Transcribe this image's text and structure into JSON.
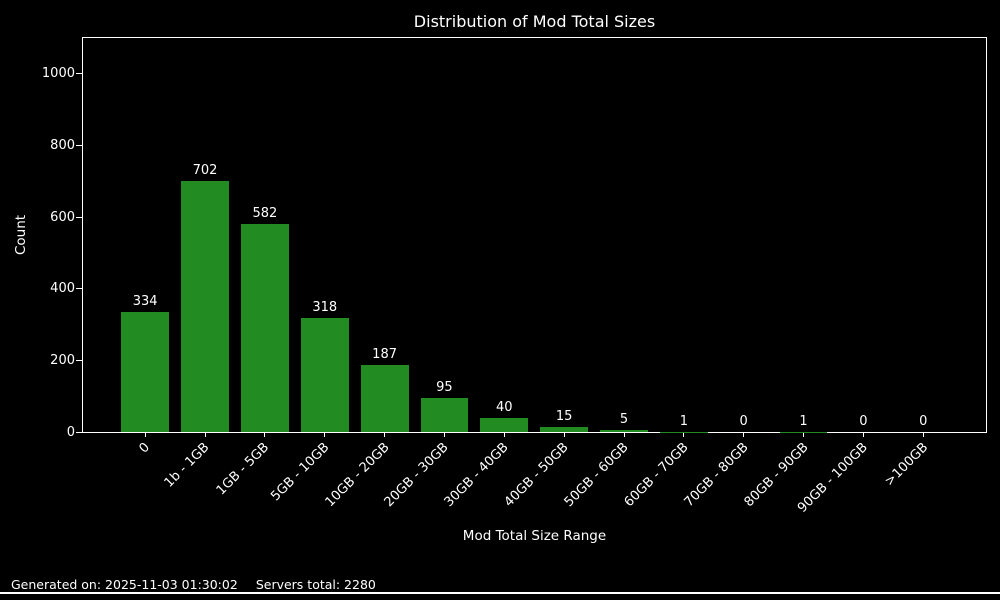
{
  "page": {
    "background": "#000000",
    "text_color": "#ffffff"
  },
  "chart_data": {
    "type": "bar",
    "title": "Distribution of Mod Total Sizes",
    "xlabel": "Mod Total Size Range",
    "ylabel": "Count",
    "categories": [
      "0",
      "1b - 1GB",
      "1GB - 5GB",
      "5GB - 10GB",
      "10GB - 20GB",
      "20GB - 30GB",
      "30GB - 40GB",
      "40GB - 50GB",
      "50GB - 60GB",
      "60GB - 70GB",
      "70GB - 80GB",
      "80GB - 90GB",
      "90GB - 100GB",
      ">100GB"
    ],
    "values": [
      334,
      702,
      582,
      318,
      187,
      95,
      40,
      15,
      5,
      1,
      0,
      1,
      0,
      0
    ],
    "ylim": [
      0,
      1100
    ],
    "yticks": [
      0,
      200,
      400,
      600,
      800,
      1000
    ],
    "bar_color": "#228b22",
    "background": "#000000",
    "text_color": "#ffffff",
    "grid": false,
    "legend_position": "none",
    "value_labels_shown": true,
    "xtick_rotation_deg": 45
  },
  "footer": {
    "generated": "Generated on: 2025-11-03 01:30:02",
    "servers_total": "Servers total: 2280"
  }
}
